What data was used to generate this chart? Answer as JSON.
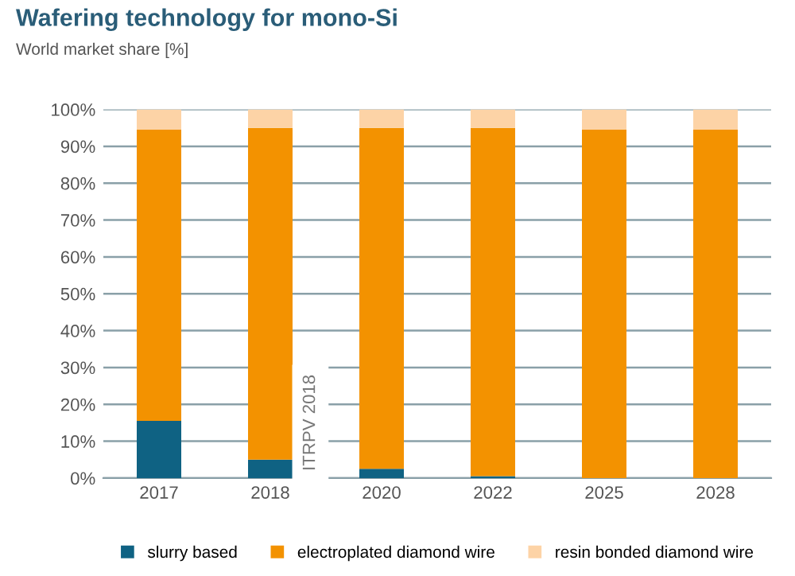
{
  "chart_data": {
    "type": "bar",
    "title": "Wafering technology for mono-Si",
    "subtitle": "World market share [%]",
    "categories": [
      "2017",
      "2018",
      "2020",
      "2022",
      "2025",
      "2028"
    ],
    "stacked": true,
    "series": [
      {
        "name": "slurry based",
        "color": "#0f6283",
        "values": [
          15.5,
          5,
          2.5,
          0.5,
          0,
          0
        ]
      },
      {
        "name": "electroplated diamond wire",
        "color": "#f39200",
        "values": [
          79,
          90,
          92.5,
          94.5,
          94.5,
          94.5
        ]
      },
      {
        "name": "resin bonded diamond wire",
        "color": "#fdd3a6",
        "values": [
          5.5,
          5,
          5,
          5,
          5.5,
          5.5
        ]
      }
    ],
    "ylim": [
      0,
      100
    ],
    "yticks": [
      {
        "value": 0,
        "label": "0%"
      },
      {
        "value": 10,
        "label": "10%"
      },
      {
        "value": 20,
        "label": "20%"
      },
      {
        "value": 30,
        "label": "30%"
      },
      {
        "value": 40,
        "label": "40%"
      },
      {
        "value": 50,
        "label": "50%"
      },
      {
        "value": 60,
        "label": "60%"
      },
      {
        "value": 70,
        "label": "70%"
      },
      {
        "value": 80,
        "label": "80%"
      },
      {
        "value": 90,
        "label": "90%"
      },
      {
        "value": 100,
        "label": "100%"
      }
    ],
    "grid": "y",
    "legend": "bottom",
    "annotations": [
      "ITRPV 2018"
    ]
  }
}
